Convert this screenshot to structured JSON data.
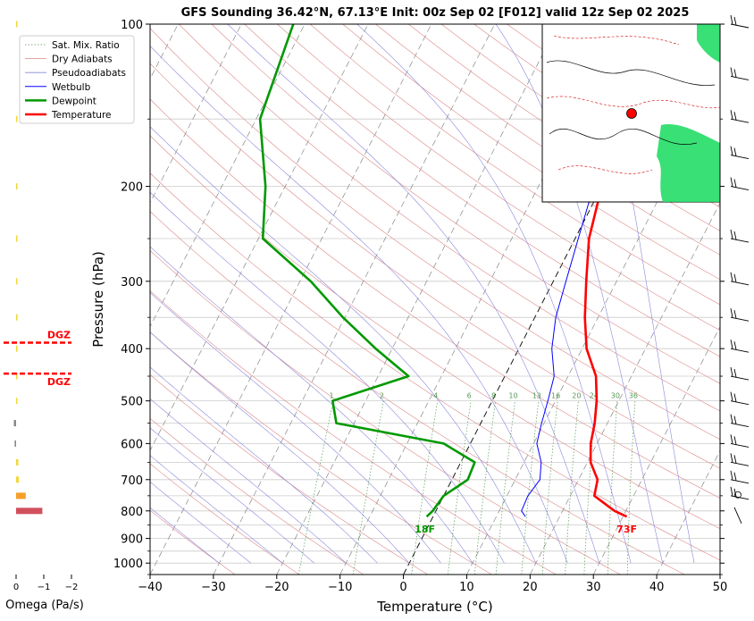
{
  "title": "GFS Sounding 36.42°N, 67.13°E Init: 00z Sep 02 [F012] valid 12z Sep 02 2025",
  "colors": {
    "temperature": "#ff0000",
    "dewpoint": "#009900",
    "wetbulb": "#0000ff",
    "dry_adiabat": "#dd8888",
    "pseudo_adiabat": "#8888dd",
    "mixing_ratio": "#559955",
    "isotherm": "#888888",
    "dgz": "#ff0000"
  },
  "chart_data": {
    "type": "line",
    "subtype": "skew-T log-P",
    "xlabel": "Temperature (°C)",
    "ylabel": "Pressure (hPa)",
    "xlim": [
      -40,
      50
    ],
    "ylim": [
      1050,
      100
    ],
    "y_log_scale": true,
    "grid": true,
    "legend_position": "top-left",
    "x_ticks": [
      "−40",
      "−30",
      "−20",
      "−10",
      "0",
      "10",
      "20",
      "30",
      "40",
      "50"
    ],
    "y_ticks": [
      "100",
      "200",
      "300",
      "400",
      "500",
      "600",
      "700",
      "800",
      "900",
      "1000"
    ],
    "legend": [
      "Sat. Mix. Ratio",
      "Dry Adiabats",
      "Pseudoadiabats",
      "Wetbulb",
      "Dewpoint",
      "Temperature"
    ],
    "series": [
      {
        "name": "Temperature",
        "pressure": [
          820,
          800,
          750,
          700,
          650,
          600,
          550,
          500,
          450,
          400,
          350,
          300,
          250,
          200,
          150,
          100
        ],
        "values": [
          30.6,
          28.2,
          23.8,
          23.0,
          20.5,
          19.0,
          18.0,
          16.5,
          14.4,
          10.7,
          7.9,
          5.2,
          2.2,
          0.0,
          1.2,
          7.0
        ]
      },
      {
        "name": "Dewpoint",
        "pressure": [
          820,
          800,
          750,
          700,
          650,
          600,
          550,
          500,
          450,
          400,
          350,
          300,
          250,
          200,
          150,
          100
        ],
        "values": [
          -1.0,
          -0.5,
          0.0,
          2.5,
          2.2,
          -4.2,
          -22.8,
          -25.2,
          -15.2,
          -22.6,
          -30.3,
          -38.3,
          -49.3,
          -53.1,
          -59.4,
          -61.8
        ]
      },
      {
        "name": "Wetbulb",
        "pressure": [
          820,
          800,
          750,
          700,
          650,
          600,
          550,
          500,
          450,
          400,
          350,
          300,
          250,
          200,
          150
        ],
        "values": [
          14.6,
          13.5,
          13.3,
          13.9,
          12.7,
          10.5,
          9.6,
          8.8,
          7.8,
          5.2,
          3.3,
          2.0,
          0.5,
          -1.3,
          1.4
        ]
      }
    ],
    "mixing_ratio_labels": [
      "1",
      "2",
      "4",
      "6",
      "8",
      "10",
      "13",
      "16",
      "20",
      "24",
      "30",
      "36"
    ],
    "surface_labels": {
      "dewpoint": "18F",
      "temperature": "73F"
    },
    "omega": {
      "xlabel": "Omega (Pa/s)",
      "x_ticks": [
        "0",
        "−1",
        "−2"
      ],
      "pressure": [
        100,
        150,
        200,
        250,
        300,
        350,
        400,
        450,
        500,
        550,
        600,
        650,
        700,
        750,
        800
      ],
      "values": [
        0.0,
        0.0,
        0.0,
        0.0,
        0.0,
        0.05,
        0.05,
        0.05,
        0.0,
        -0.08,
        -0.05,
        0.08,
        0.1,
        0.35,
        0.95
      ],
      "dgz_label": "DGZ",
      "dgz_pressures": [
        390,
        445
      ]
    }
  }
}
